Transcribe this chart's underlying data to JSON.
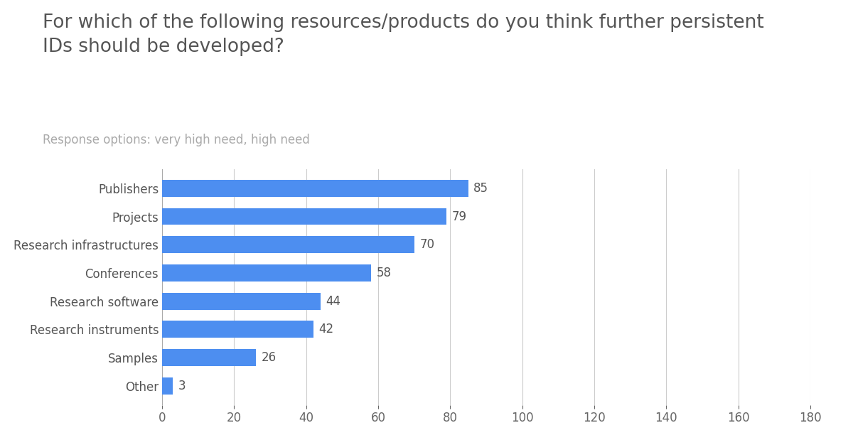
{
  "title": "For which of the following resources/products do you think further persistent\nIDs should be developed?",
  "subtitle": "Response options: very high need, high need",
  "categories": [
    "Publishers",
    "Projects",
    "Research infrastructures",
    "Conferences",
    "Research software",
    "Research instruments",
    "Samples",
    "Other"
  ],
  "values": [
    85,
    79,
    70,
    58,
    44,
    42,
    26,
    3
  ],
  "bar_color": "#4d8ef0",
  "title_fontsize": 19,
  "subtitle_fontsize": 12,
  "label_fontsize": 12,
  "value_fontsize": 12,
  "tick_fontsize": 12,
  "xlim": [
    0,
    180
  ],
  "xticks": [
    0,
    20,
    40,
    60,
    80,
    100,
    120,
    140,
    160,
    180
  ],
  "background_color": "#ffffff",
  "grid_color": "#cccccc",
  "title_color": "#555555",
  "subtitle_color": "#aaaaaa",
  "value_color": "#555555",
  "ylabel_color": "#555555",
  "bar_height": 0.6
}
